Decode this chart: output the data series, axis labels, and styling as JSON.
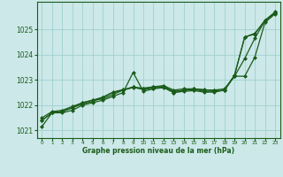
{
  "bg_color": "#cce8e8",
  "grid_color": "#99cccc",
  "line_color": "#1a5c1a",
  "xlabel": "Graphe pression niveau de la mer (hPa)",
  "xlabel_color": "#1a5c1a",
  "xlim": [
    -0.5,
    23.5
  ],
  "ylim": [
    1020.7,
    1026.1
  ],
  "yticks": [
    1021,
    1022,
    1023,
    1024,
    1025
  ],
  "xticks": [
    0,
    1,
    2,
    3,
    4,
    5,
    6,
    7,
    8,
    9,
    10,
    11,
    12,
    13,
    14,
    15,
    16,
    17,
    18,
    19,
    20,
    21,
    22,
    23
  ],
  "series": [
    [
      1021.15,
      1021.7,
      1021.7,
      1021.8,
      1022.0,
      1022.1,
      1022.2,
      1022.35,
      1022.5,
      1023.3,
      1022.55,
      1022.65,
      1022.7,
      1022.5,
      1022.6,
      1022.65,
      1022.6,
      1022.6,
      1022.65,
      1023.15,
      1023.85,
      1024.65,
      1025.35,
      1025.7
    ],
    [
      1021.4,
      1021.7,
      1021.75,
      1021.9,
      1022.05,
      1022.15,
      1022.3,
      1022.5,
      1022.6,
      1022.7,
      1022.65,
      1022.72,
      1022.75,
      1022.55,
      1022.6,
      1022.62,
      1022.55,
      1022.55,
      1022.6,
      1023.2,
      1024.7,
      1024.85,
      1025.35,
      1025.65
    ],
    [
      1021.4,
      1021.7,
      1021.75,
      1021.9,
      1022.1,
      1022.2,
      1022.25,
      1022.42,
      1022.6,
      1022.72,
      1022.62,
      1022.68,
      1022.72,
      1022.5,
      1022.55,
      1022.58,
      1022.52,
      1022.52,
      1022.6,
      1023.15,
      1023.15,
      1023.9,
      1025.28,
      1025.62
    ],
    [
      1021.5,
      1021.75,
      1021.8,
      1021.95,
      1022.1,
      1022.2,
      1022.32,
      1022.52,
      1022.62,
      1022.72,
      1022.68,
      1022.73,
      1022.78,
      1022.6,
      1022.65,
      1022.65,
      1022.62,
      1022.58,
      1022.58,
      1023.18,
      1024.7,
      1024.82,
      1025.37,
      1025.68
    ]
  ],
  "marker": "D",
  "markersize": 2.0,
  "linewidth": 0.9
}
